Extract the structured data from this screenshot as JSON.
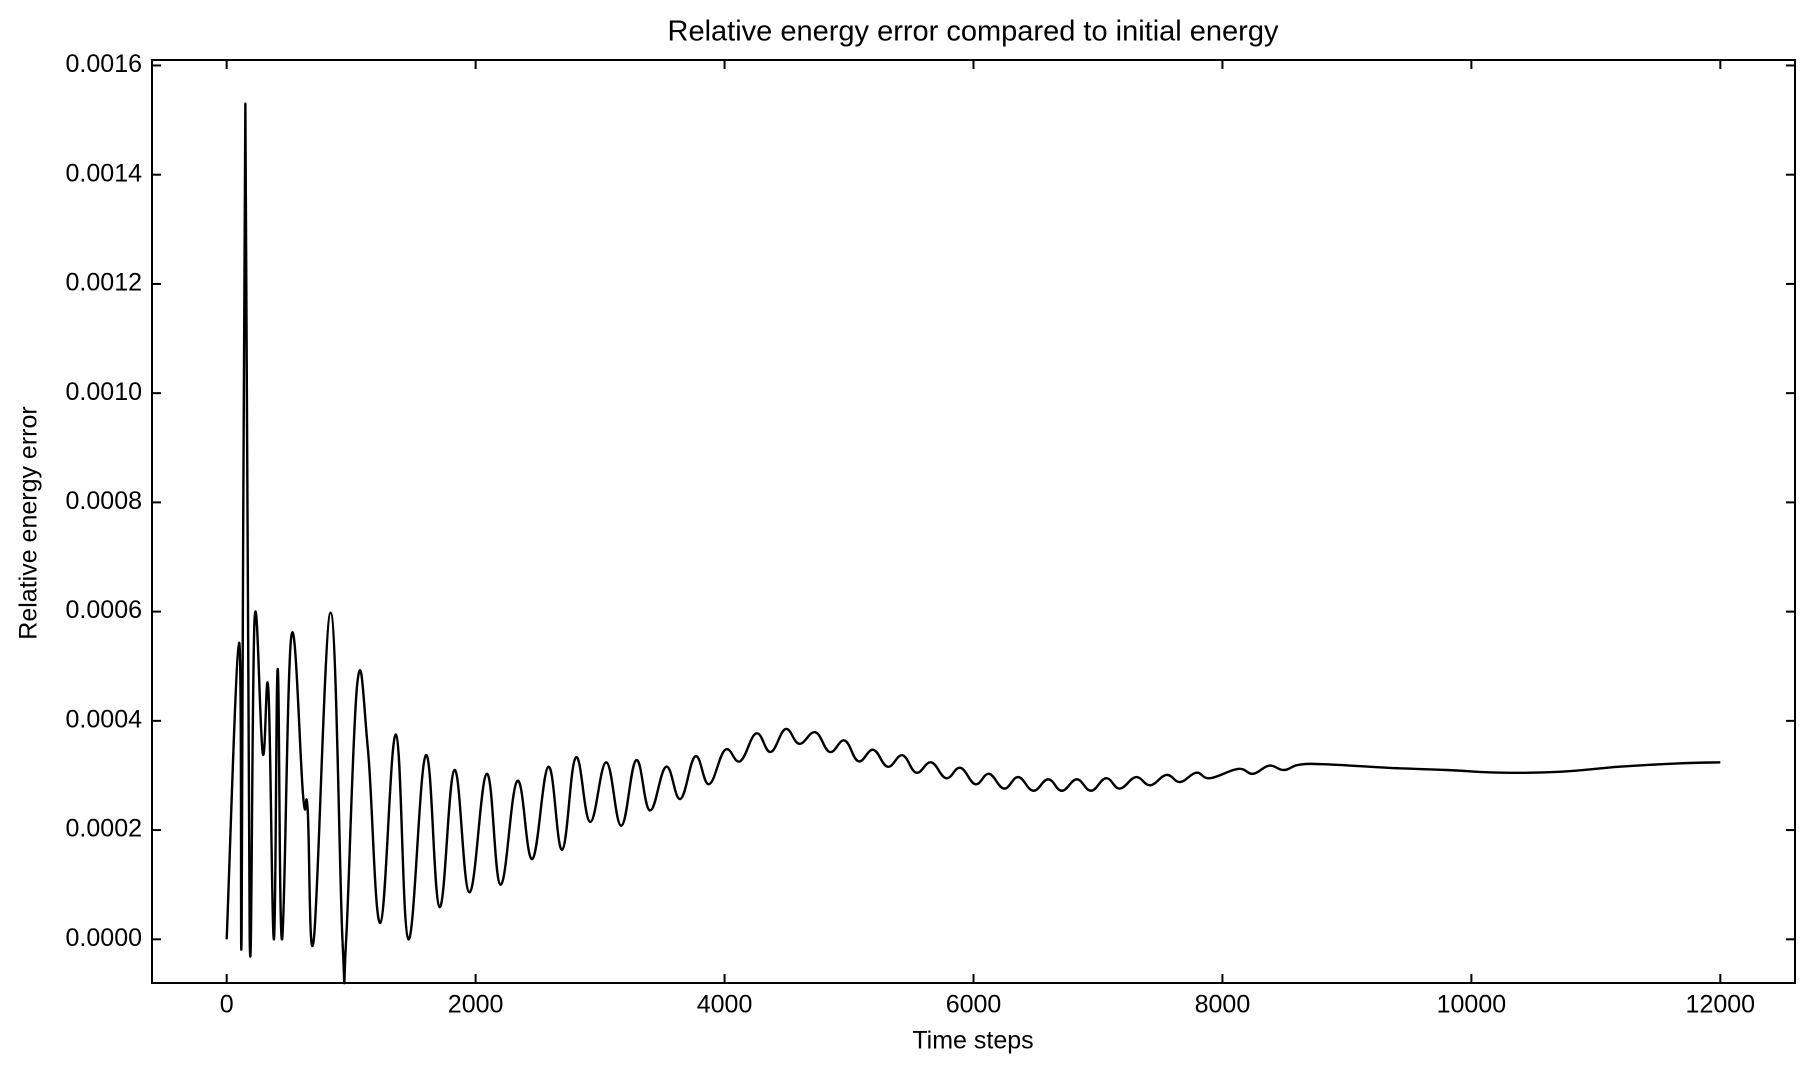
{
  "chart_data": {
    "type": "line",
    "title": "Relative energy error compared to initial energy",
    "x_label": "Time steps",
    "y_label": "Relative energy error",
    "xlim": [
      -600,
      12600
    ],
    "ylim": [
      -8e-05,
      0.00161
    ],
    "xticks": [
      0,
      2000,
      4000,
      6000,
      8000,
      10000,
      12000
    ],
    "yticks": [
      {
        "value": 0,
        "label": "0.0000"
      },
      {
        "value": 0.0002,
        "label": "0.0002"
      },
      {
        "value": 0.0004,
        "label": "0.0004"
      },
      {
        "value": 0.0006,
        "label": "0.0006"
      },
      {
        "value": 0.0008,
        "label": "0.0008"
      },
      {
        "value": 0.001,
        "label": "0.0010"
      },
      {
        "value": 0.0012,
        "label": "0.0012"
      },
      {
        "value": 0.0014,
        "label": "0.0014"
      },
      {
        "value": 0.0016,
        "label": "0.0016"
      }
    ],
    "grid": false,
    "series": [
      {
        "color": "#000000",
        "x": [
          0,
          100,
          120,
          150,
          185,
          225,
          290,
          335,
          380,
          410,
          445,
          520,
          615,
          650,
          700,
          835,
          930,
          960,
          1050,
          1135,
          1235,
          1360,
          1460,
          1600,
          1710,
          1830,
          1950,
          2090,
          2200,
          2335,
          2455,
          2585,
          2695,
          2805,
          2920,
          3050,
          3170,
          3290,
          3400,
          3530,
          3645,
          3765,
          3875,
          4005,
          4125,
          4255,
          4370,
          4490,
          4600,
          4730,
          4845,
          4965,
          5075,
          5195,
          5310,
          5430,
          5540,
          5660,
          5780,
          5895,
          6015,
          6125,
          6245,
          6360,
          6480,
          6600,
          6710,
          6830,
          6945,
          7065,
          7175,
          7305,
          7420,
          7550,
          7660,
          7790,
          7900,
          8125,
          8245,
          8375,
          8495,
          8625,
          8870,
          9330,
          9800,
          10260,
          10725,
          11190,
          11660,
          12000
        ],
        "values": [
          0,
          0.000543,
          1.5e-05,
          0.00153,
          0,
          0.00059,
          0.00034,
          0.000457,
          0,
          0.000495,
          0,
          0.000556,
          0.00026,
          0.00024,
          0,
          0.000598,
          0,
          0,
          0.00047,
          0.000347,
          3e-05,
          0.000375,
          0,
          0.000337,
          5.9e-05,
          0.00031,
          8.6e-05,
          0.000303,
          0.0001,
          0.00029,
          0.000147,
          0.000316,
          0.000164,
          0.000333,
          0.000215,
          0.000324,
          0.000208,
          0.000328,
          0.000236,
          0.000316,
          0.000257,
          0.000335,
          0.000284,
          0.000347,
          0.000326,
          0.000377,
          0.000343,
          0.000385,
          0.000358,
          0.000379,
          0.000343,
          0.000364,
          0.000326,
          0.000347,
          0.000316,
          0.000337,
          0.000305,
          0.000324,
          0.000295,
          0.000314,
          0.000284,
          0.000303,
          0.000276,
          0.000297,
          0.000272,
          0.000293,
          0.000272,
          0.000293,
          0.000272,
          0.000295,
          0.000276,
          0.000297,
          0.000282,
          0.000301,
          0.000288,
          0.000305,
          0.000295,
          0.000312,
          0.000303,
          0.000318,
          0.00031,
          0.00032,
          0.00032,
          0.000314,
          0.00031,
          0.000305,
          0.000307,
          0.000316,
          0.000322,
          0.000324
        ]
      }
    ]
  }
}
